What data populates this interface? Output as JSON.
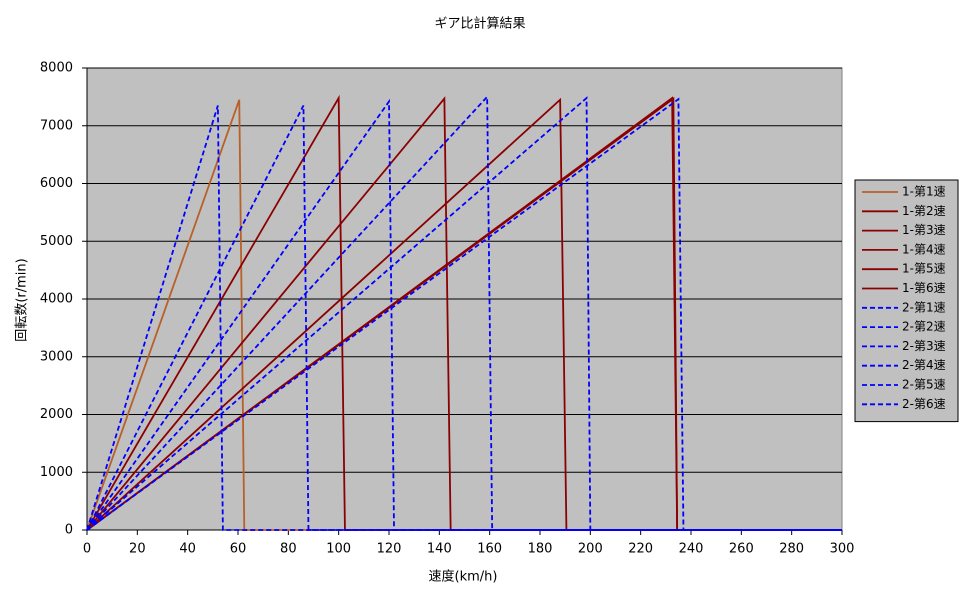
{
  "chart_data": {
    "type": "line",
    "title": "ギア比計算結果",
    "x_label": "速度(km/h)",
    "y_label": "回転数(r/min)",
    "xlim": [
      0,
      300
    ],
    "xticks": [
      0,
      20,
      40,
      60,
      80,
      100,
      120,
      140,
      160,
      180,
      200,
      220,
      240,
      260,
      280,
      300
    ],
    "ylim": [
      0,
      8000
    ],
    "yticks": [
      0,
      1000,
      2000,
      3000,
      4000,
      5000,
      6000,
      7000,
      8000
    ],
    "grid": true,
    "legend": "right",
    "plot_background": "#c0c0c0",
    "series": [
      {
        "name": "1-第1速",
        "color": "#b8602a",
        "dashed": false,
        "x": [
          0,
          60.5,
          62.5,
          300
        ],
        "values": [
          0,
          7450,
          0,
          0
        ]
      },
      {
        "name": "1-第2速",
        "color": "#8b0000",
        "dashed": false,
        "x": [
          0,
          100,
          102.5,
          300
        ],
        "values": [
          0,
          7480,
          0,
          0
        ]
      },
      {
        "name": "1-第3速",
        "color": "#8b0000",
        "dashed": false,
        "x": [
          0,
          142,
          144.5,
          300
        ],
        "values": [
          0,
          7470,
          0,
          0
        ]
      },
      {
        "name": "1-第4速",
        "color": "#8b0000",
        "dashed": false,
        "x": [
          0,
          188,
          190.5,
          300
        ],
        "values": [
          0,
          7450,
          0,
          0
        ]
      },
      {
        "name": "1-第5速",
        "color": "#8b0000",
        "dashed": false,
        "x": [
          0,
          232.5,
          234.5,
          300
        ],
        "values": [
          0,
          7480,
          0,
          0
        ]
      },
      {
        "name": "1-第6速",
        "color": "#8b0000",
        "dashed": false,
        "x": [
          0,
          233,
          234.5,
          300
        ],
        "values": [
          0,
          7470,
          0,
          0
        ]
      },
      {
        "name": "2-第1速",
        "color": "#0000ff",
        "dashed": true,
        "x": [
          0,
          52,
          54,
          300
        ],
        "values": [
          0,
          7350,
          0,
          0
        ]
      },
      {
        "name": "2-第2速",
        "color": "#0000ff",
        "dashed": true,
        "x": [
          0,
          86,
          88,
          300
        ],
        "values": [
          0,
          7350,
          0,
          0
        ]
      },
      {
        "name": "2-第3速",
        "color": "#0000ff",
        "dashed": true,
        "x": [
          0,
          120,
          122,
          300
        ],
        "values": [
          0,
          7420,
          0,
          0
        ]
      },
      {
        "name": "2-第4速",
        "color": "#0000ff",
        "dashed": true,
        "x": [
          0,
          159,
          161,
          300
        ],
        "values": [
          0,
          7500,
          0,
          0
        ]
      },
      {
        "name": "2-第5速",
        "color": "#0000ff",
        "dashed": true,
        "x": [
          0,
          198.5,
          200,
          300
        ],
        "values": [
          0,
          7480,
          0,
          0
        ]
      },
      {
        "name": "2-第6速",
        "color": "#0000ff",
        "dashed": true,
        "x": [
          0,
          235,
          237,
          300
        ],
        "values": [
          0,
          7460,
          0,
          0
        ]
      }
    ]
  }
}
